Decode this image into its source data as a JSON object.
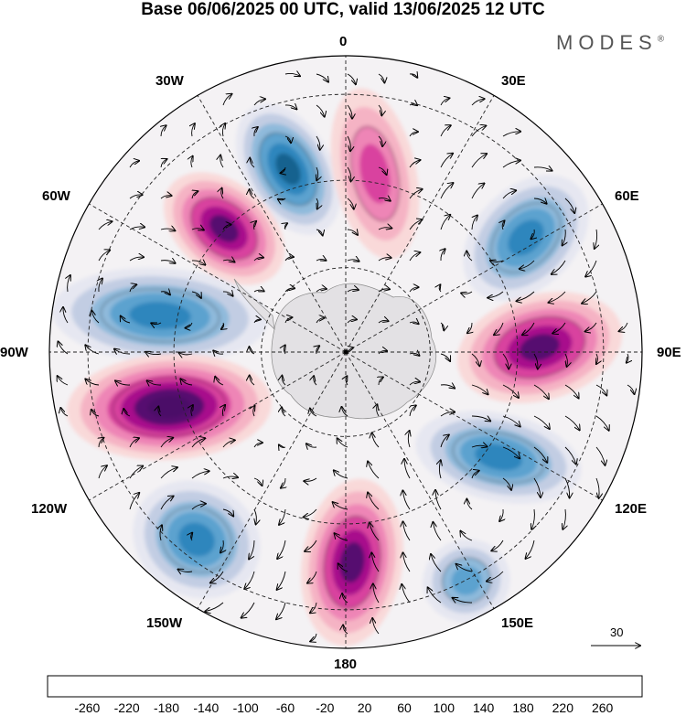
{
  "title": "Base 06/06/2025 00 UTC, valid 13/06/2025 12 UTC",
  "brand": "MODES",
  "brand_mark": "®",
  "longitude_labels": {
    "lon_0": "0",
    "lon_30e": "30E",
    "lon_60e": "60E",
    "lon_90e": "90E",
    "lon_120e": "120E",
    "lon_150e": "150E",
    "lon_180": "180",
    "lon_150w": "150W",
    "lon_120w": "120W",
    "lon_90w": "90W",
    "lon_60w": "60W",
    "lon_30w": "30W"
  },
  "reference_vector": "30",
  "colorbar": {
    "labels": [
      "-260",
      "-220",
      "-180",
      "-140",
      "-100",
      "-60",
      "-20",
      "20",
      "60",
      "100",
      "140",
      "180",
      "220",
      "260"
    ],
    "colors": [
      "#0e3f5e",
      "#17628f",
      "#2f86bd",
      "#5ba2cf",
      "#8fbadb",
      "#c2cde3",
      "#e6e7f1",
      "#ffffff",
      "#f9d9d9",
      "#f5b3c4",
      "#ee85b6",
      "#d9429f",
      "#a8108c",
      "#56106f",
      "#4b0a67"
    ]
  },
  "anomaly_centers": [
    {
      "sign": "negative",
      "region": "30W-0 sector",
      "level": -220
    },
    {
      "sign": "positive",
      "region": "0-15E sector",
      "level": 140
    },
    {
      "sign": "positive",
      "region": "45W sector",
      "level": 220
    },
    {
      "sign": "negative",
      "region": "60E sector",
      "level": -180
    },
    {
      "sign": "negative",
      "region": "80W sector",
      "level": -180
    },
    {
      "sign": "positive",
      "region": "95E sector",
      "level": 220
    },
    {
      "sign": "positive",
      "region": "105W sector",
      "level": 260
    },
    {
      "sign": "negative",
      "region": "120E sector",
      "level": -180
    },
    {
      "sign": "negative",
      "region": "140W sector",
      "level": -180
    },
    {
      "sign": "positive",
      "region": "175W sector",
      "level": 220
    },
    {
      "sign": "negative",
      "region": "150E sector",
      "level": -140
    }
  ]
}
